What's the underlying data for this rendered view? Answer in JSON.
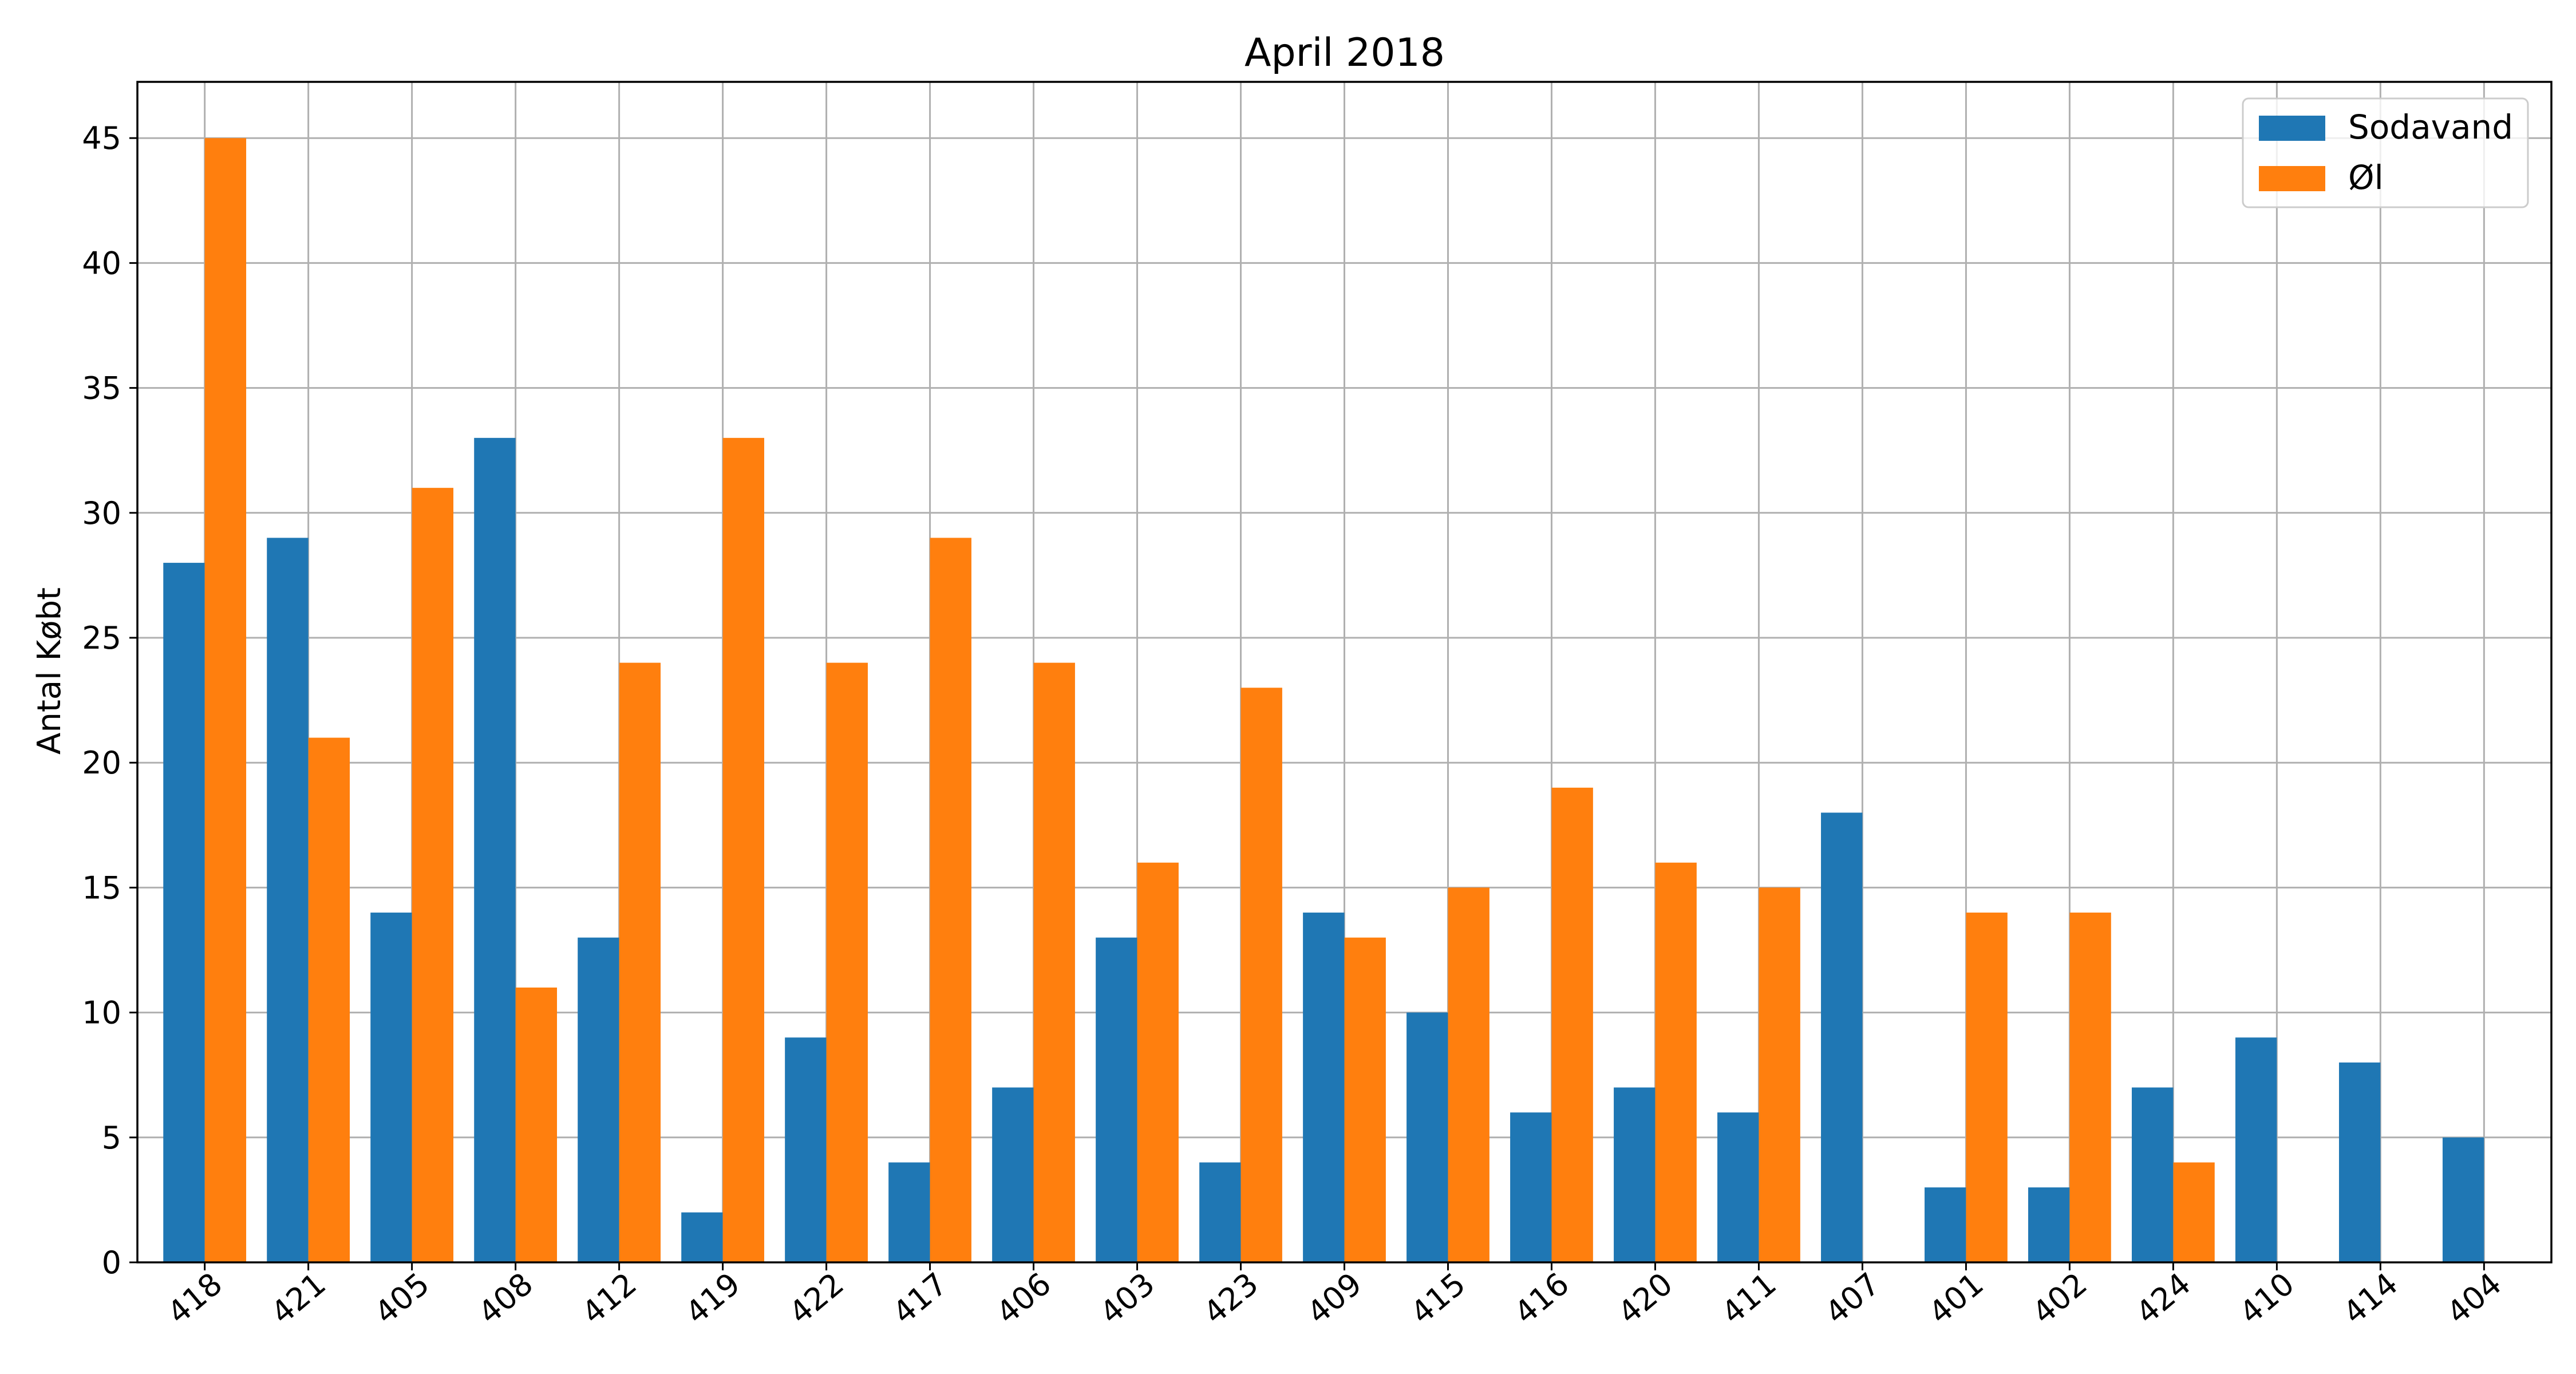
{
  "chart_data": {
    "type": "bar",
    "title": "April 2018",
    "xlabel": "",
    "ylabel": "Antal Købt",
    "categories": [
      "418",
      "421",
      "405",
      "408",
      "412",
      "419",
      "422",
      "417",
      "406",
      "403",
      "423",
      "409",
      "415",
      "416",
      "420",
      "411",
      "407",
      "401",
      "402",
      "424",
      "410",
      "414",
      "404"
    ],
    "series": [
      {
        "name": "Sodavand",
        "color": "#1f77b4",
        "values": [
          28,
          29,
          14,
          33,
          13,
          2,
          9,
          4,
          7,
          13,
          4,
          14,
          10,
          6,
          7,
          6,
          18,
          3,
          3,
          7,
          9,
          8,
          5
        ]
      },
      {
        "name": "Øl",
        "color": "#ff7f0e",
        "values": [
          45,
          21,
          31,
          11,
          24,
          33,
          24,
          29,
          24,
          16,
          23,
          13,
          15,
          19,
          16,
          15,
          0,
          14,
          14,
          4,
          0,
          0,
          0
        ]
      }
    ],
    "ylim": [
      0,
      47.25
    ],
    "yticks": [
      0,
      5,
      10,
      15,
      20,
      25,
      30,
      35,
      40,
      45
    ],
    "grid": true,
    "legend_position": "top-right"
  }
}
